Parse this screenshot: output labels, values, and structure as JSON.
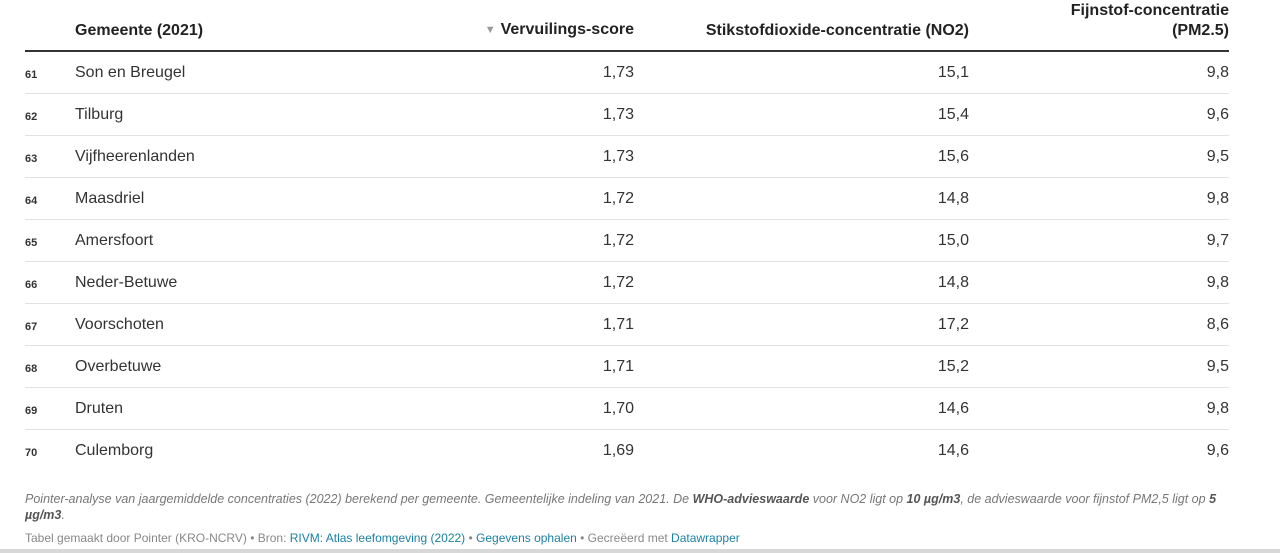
{
  "table": {
    "headers": {
      "name": "Gemeente (2021)",
      "score_sort_icon": "▼",
      "score": "Vervuilings-score",
      "no2": "Stikstofdioxide-concentratie (NO2)",
      "pm_line1": "Fijnstof-concentratie",
      "pm_line2": "(PM2.5)"
    },
    "rows": [
      {
        "rank": "61",
        "name": "Son en Breugel",
        "score": "1,73",
        "no2": "15,1",
        "pm": "9,8"
      },
      {
        "rank": "62",
        "name": "Tilburg",
        "score": "1,73",
        "no2": "15,4",
        "pm": "9,6"
      },
      {
        "rank": "63",
        "name": "Vijfheerenlanden",
        "score": "1,73",
        "no2": "15,6",
        "pm": "9,5"
      },
      {
        "rank": "64",
        "name": "Maasdriel",
        "score": "1,72",
        "no2": "14,8",
        "pm": "9,8"
      },
      {
        "rank": "65",
        "name": "Amersfoort",
        "score": "1,72",
        "no2": "15,0",
        "pm": "9,7"
      },
      {
        "rank": "66",
        "name": "Neder-Betuwe",
        "score": "1,72",
        "no2": "14,8",
        "pm": "9,8"
      },
      {
        "rank": "67",
        "name": "Voorschoten",
        "score": "1,71",
        "no2": "17,2",
        "pm": "8,6"
      },
      {
        "rank": "68",
        "name": "Overbetuwe",
        "score": "1,71",
        "no2": "15,2",
        "pm": "9,5"
      },
      {
        "rank": "69",
        "name": "Druten",
        "score": "1,70",
        "no2": "14,6",
        "pm": "9,8"
      },
      {
        "rank": "70",
        "name": "Culemborg",
        "score": "1,69",
        "no2": "14,6",
        "pm": "9,6"
      }
    ]
  },
  "notes": {
    "part1": "Pointer-analyse van jaargemiddelde concentraties (2022) berekend per gemeente. Gemeentelijke indeling van 2021. De ",
    "who_label": "WHO-advieswaarde",
    "part2": " voor NO2 ligt op ",
    "no2_value": "10 µg/m3",
    "part3": ", de advieswaarde voor fijnstof PM2,5 ligt op ",
    "pm_value": "5 µg/m3",
    "part4": "."
  },
  "credits": {
    "made_by": "Tabel gemaakt door Pointer (KRO-NCRV) • Bron: ",
    "source_link": "RIVM: Atlas leefomgeving (2022)",
    "sep1": " • ",
    "data_link": "Gegevens ophalen",
    "sep2": " • Gecreëerd met ",
    "tool_link": "Datawrapper"
  }
}
